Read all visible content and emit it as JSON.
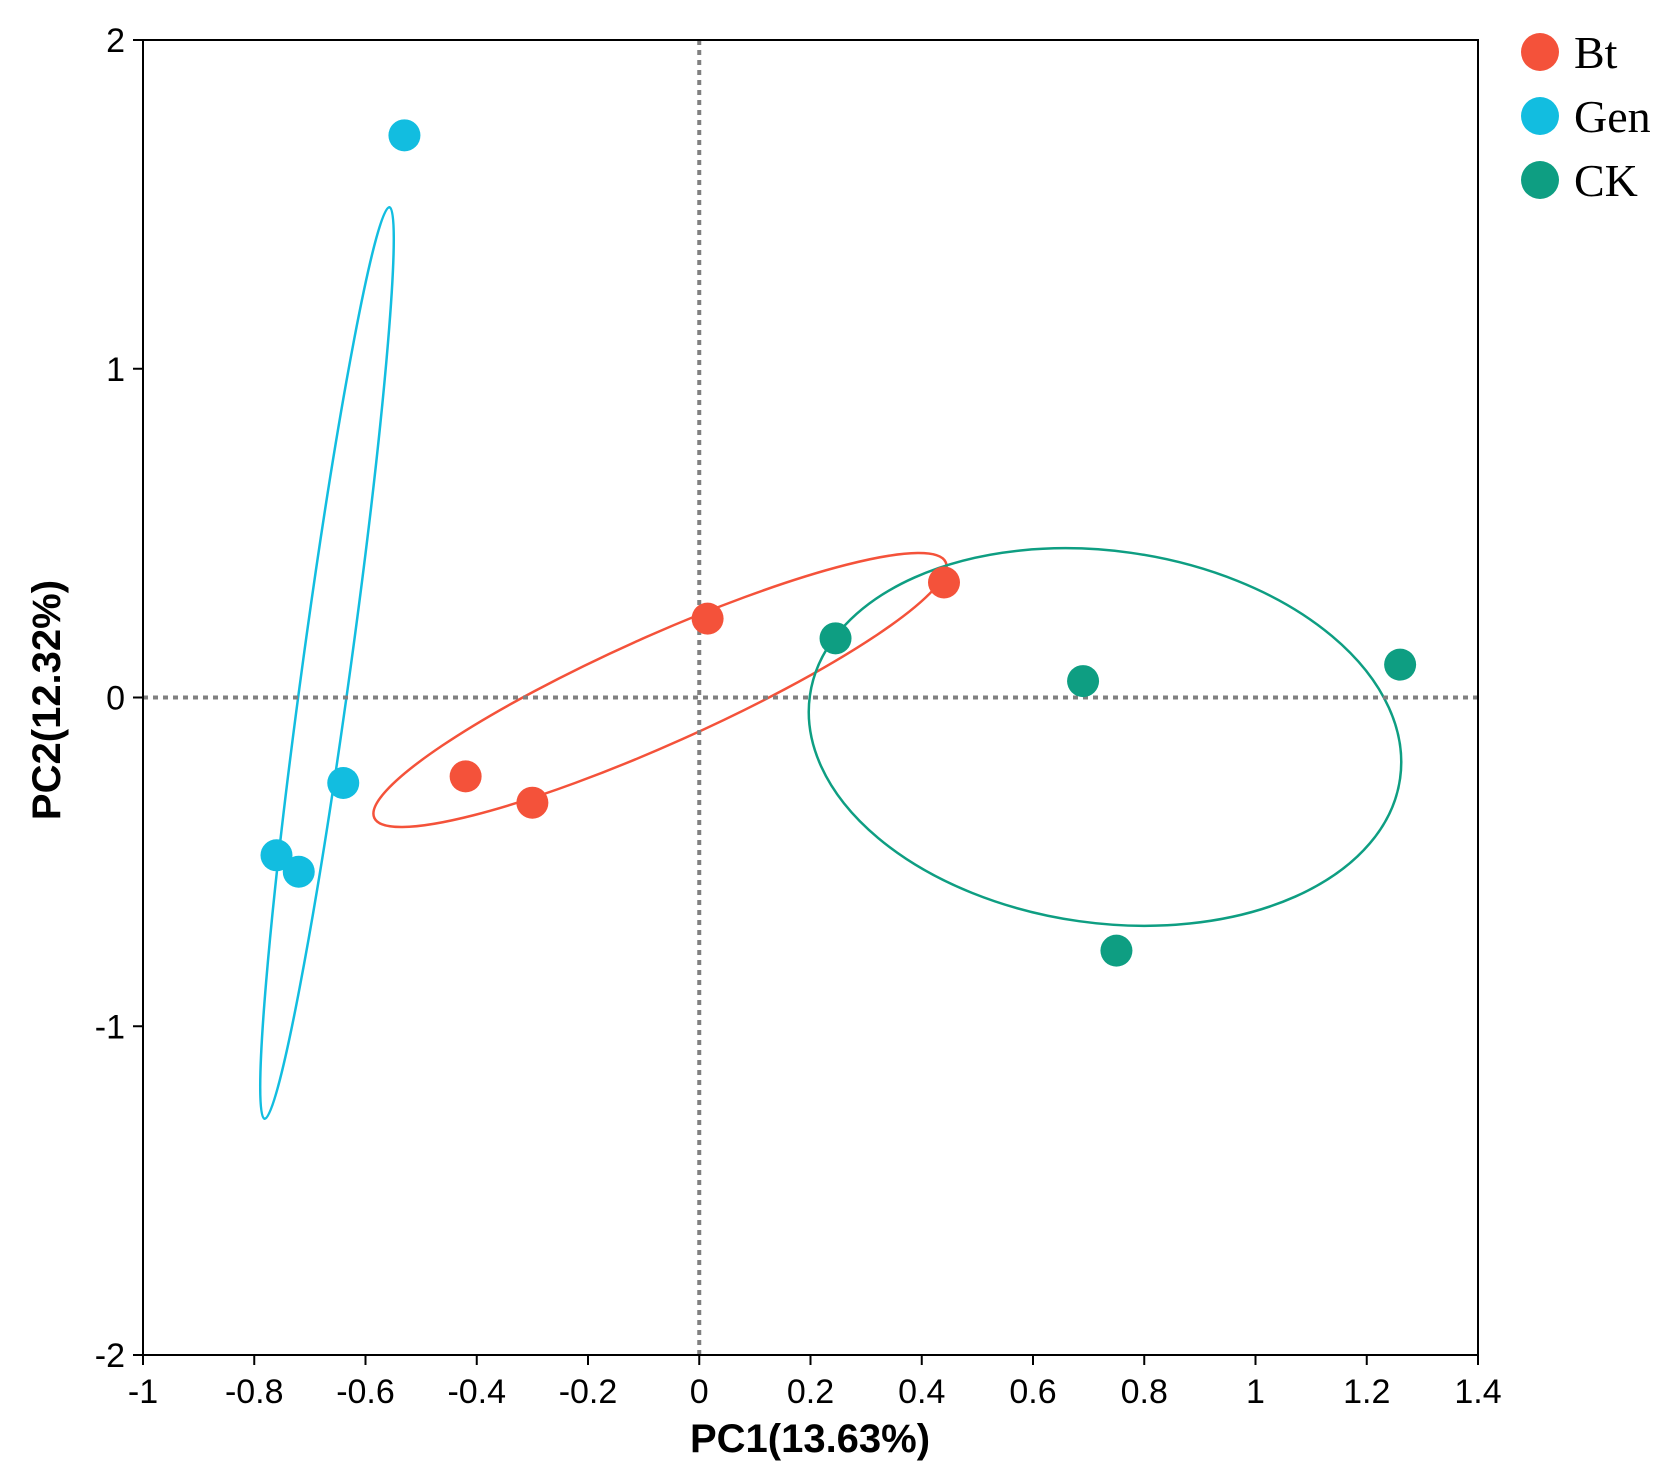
{
  "chart_data": {
    "type": "scatter",
    "title": "",
    "xlabel": "PC1(13.63%)",
    "ylabel": "PC2(12.32%)",
    "xlim": [
      -1,
      1.4
    ],
    "ylim": [
      -2,
      2
    ],
    "xticks": [
      -1,
      -0.8,
      -0.6,
      -0.4,
      -0.2,
      0,
      0.2,
      0.4,
      0.6,
      0.8,
      1,
      1.2,
      1.4
    ],
    "xtick_labels": [
      "-1",
      "-0.8",
      "-0.6",
      "-0.4",
      "-0.2",
      "0",
      "0.2",
      "0.4",
      "0.6",
      "0.8",
      "1",
      "1.2",
      "1.4"
    ],
    "yticks": [
      2,
      1,
      0,
      -1,
      -2
    ],
    "ytick_labels": [
      "2",
      "1",
      "0",
      "-1",
      "-2"
    ],
    "reference_lines": {
      "x": 0,
      "y": 0,
      "style": "dotted"
    },
    "grid": false,
    "legend_position": "top-right, outside plot",
    "series": [
      {
        "name": "Bt",
        "color": "#f4523a",
        "points": [
          [
            0.015,
            0.24
          ],
          [
            0.44,
            0.35
          ],
          [
            -0.42,
            -0.24
          ],
          [
            -0.3,
            -0.32
          ]
        ]
      },
      {
        "name": "Gen",
        "color": "#12bde0",
        "points": [
          [
            -0.53,
            1.71
          ],
          [
            -0.64,
            -0.26
          ],
          [
            -0.76,
            -0.48
          ],
          [
            -0.72,
            -0.53
          ]
        ]
      },
      {
        "name": "CK",
        "color": "#0e9e82",
        "points": [
          [
            0.245,
            0.18
          ],
          [
            0.69,
            0.05
          ],
          [
            1.26,
            0.1
          ],
          [
            0.75,
            -0.77
          ]
        ]
      }
    ]
  }
}
